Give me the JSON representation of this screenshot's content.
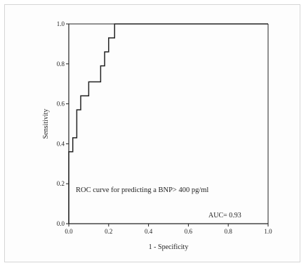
{
  "chart_data": {
    "type": "line",
    "title": "",
    "xlabel": "1 - Specificity",
    "ylabel": "Sensitivity",
    "xlim": [
      0.0,
      1.0
    ],
    "ylim": [
      0.0,
      1.0
    ],
    "x_ticks": [
      "0.0",
      "0.2",
      "0.4",
      "0.6",
      "0.8",
      "1.0"
    ],
    "y_ticks": [
      "0.0",
      "0.2",
      "0.4",
      "0.6",
      "0.8",
      "1.0"
    ],
    "grid": false,
    "series": [
      {
        "x": [
          0.0,
          0.0,
          0.02,
          0.02,
          0.04,
          0.04,
          0.06,
          0.06,
          0.1,
          0.1,
          0.16,
          0.16,
          0.18,
          0.18,
          0.2,
          0.2,
          0.23,
          0.23,
          1.0
        ],
        "y": [
          0.0,
          0.36,
          0.36,
          0.43,
          0.43,
          0.57,
          0.57,
          0.64,
          0.64,
          0.71,
          0.71,
          0.79,
          0.79,
          0.86,
          0.86,
          0.93,
          0.93,
          1.0,
          1.0
        ],
        "color": "#222222"
      }
    ],
    "annotations": [
      {
        "id": "curve-label",
        "text": "ROC curve for predicting a BNP> 400  pg/ml"
      },
      {
        "id": "auc",
        "text": "AUC= 0.93"
      }
    ]
  }
}
